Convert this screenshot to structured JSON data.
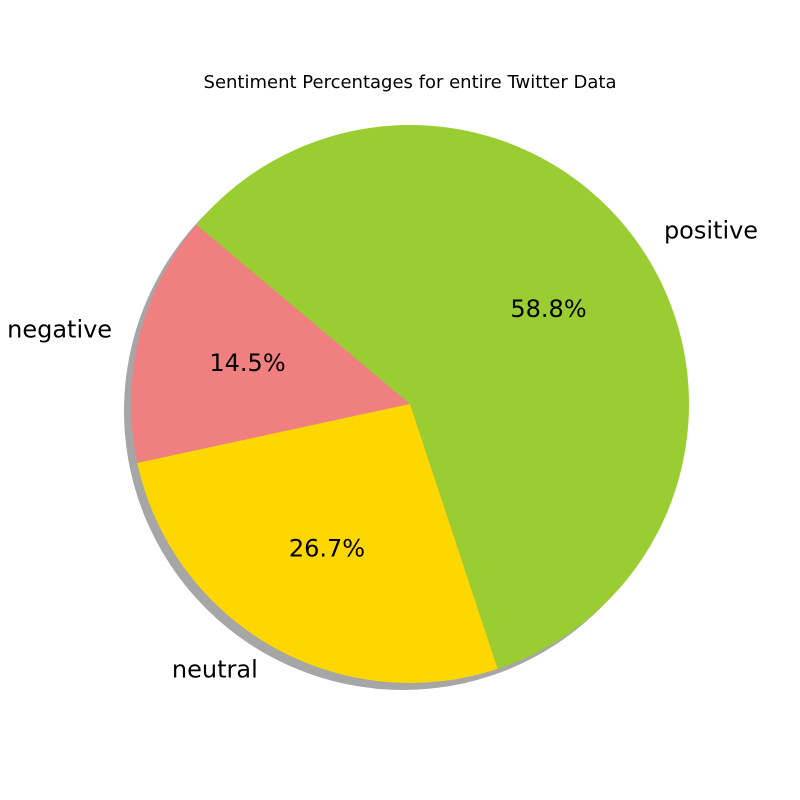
{
  "chart_data": {
    "type": "pie",
    "title": "Sentiment Percentages for entire Twitter Data",
    "labels": [
      "negative",
      "neutral",
      "positive"
    ],
    "values": [
      14.5,
      26.7,
      58.8
    ],
    "value_labels": [
      "14.5%",
      "26.7%",
      "58.8%"
    ],
    "colors": [
      "#f08080",
      "#ffd700",
      "#9acd32"
    ],
    "shadow": true,
    "legend": "none"
  }
}
